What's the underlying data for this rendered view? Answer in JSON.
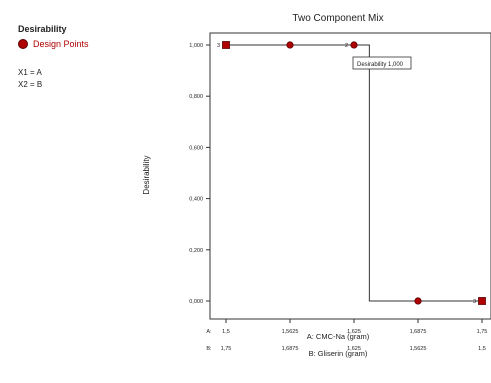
{
  "legend": {
    "title": "Desirability",
    "design_points_label": "Design Points"
  },
  "variable_mapping": {
    "x1": "X1 = A",
    "x2": "X2 = B"
  },
  "tooltip": {
    "text": "Desirability 1,000"
  },
  "colors": {
    "point_fill": "#b00000",
    "point_stroke": "#5a0000",
    "line": "#333333"
  },
  "chart_data": {
    "type": "line",
    "title": "Two Component Mix",
    "ylabel": "Desirability",
    "xlabel": "A: CMC-Na (gram)",
    "xlabel2": "B: Gliserin (gram)",
    "row_prefix_a": "A:",
    "row_prefix_b": "B:",
    "xlim": [
      1.5,
      1.75
    ],
    "ylim": [
      0,
      1
    ],
    "x_ticks": [
      1.5,
      1.5625,
      1.625,
      1.6875,
      1.75
    ],
    "x_tick_labels_a": [
      "1,5",
      "1,5625",
      "1,625",
      "1,6875",
      "1,75"
    ],
    "x_tick_labels_b": [
      "1,75",
      "1,6875",
      "1,625",
      "1,5625",
      "1,5"
    ],
    "y_ticks": [
      0,
      0.2,
      0.4,
      0.6,
      0.8,
      1.0
    ],
    "y_tick_labels": [
      "0,000",
      "0,200",
      "0,400",
      "0,600",
      "0,800",
      "1,000"
    ],
    "series": [
      {
        "x": [
          1.5,
          1.5625,
          1.625,
          1.64,
          1.64,
          1.6875,
          1.75
        ],
        "y": [
          1,
          1,
          1,
          1,
          0,
          0,
          0
        ]
      }
    ],
    "points": [
      {
        "x": 1.5,
        "y": 1,
        "shape": "square",
        "count_label": "3"
      },
      {
        "x": 1.5625,
        "y": 1,
        "shape": "circle",
        "count_label": ""
      },
      {
        "x": 1.625,
        "y": 1,
        "shape": "circle",
        "count_label": "2"
      },
      {
        "x": 1.6875,
        "y": 0,
        "shape": "circle",
        "count_label": ""
      },
      {
        "x": 1.75,
        "y": 0,
        "shape": "square",
        "count_label": "3"
      }
    ],
    "grid": false,
    "legend_position": "top-left"
  }
}
